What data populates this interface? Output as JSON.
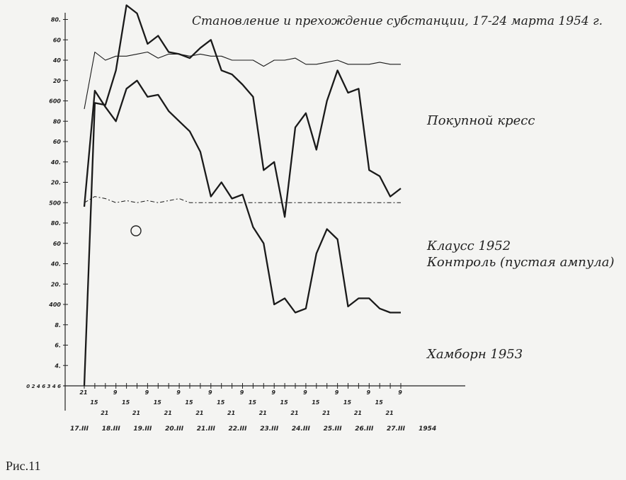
{
  "title": "Становление и прехождение субстанции, 17-24 марта 1954 г.",
  "figure_caption": "Рис.11",
  "chart_data": {
    "type": "line",
    "title": "Становление и прехождение субстанции, 17-24 марта 1954 г.",
    "xlabel": "",
    "ylabel": "",
    "x_hours": [
      "21",
      "15",
      "21",
      "9",
      "15",
      "21",
      "9",
      "15",
      "21",
      "9",
      "15",
      "21",
      "9",
      "15",
      "21",
      "9",
      "15",
      "21",
      "9",
      "15",
      "21",
      "9",
      "15",
      "21",
      "9",
      "15",
      "21",
      "9",
      "15",
      "21",
      "9"
    ],
    "x_days": [
      "17.III",
      "18.III",
      "19.III",
      "20.III",
      "21.III",
      "22.III",
      "23.III",
      "24.III",
      "25.III",
      "26.III",
      "27.III",
      "1954"
    ],
    "y_tick_labels": [
      "0 2 4 6 3 4 6",
      "4.",
      "6.",
      "8.",
      "400",
      "20.",
      "40.",
      "60",
      "80.",
      "500",
      "20.",
      "40.",
      "60",
      "80",
      "600",
      "20",
      "40",
      "60",
      "80."
    ],
    "ylim": [
      0,
      18
    ],
    "grid": false,
    "series": [
      {
        "name": "Покупной кресс",
        "style": "thin",
        "x": [
          0,
          1,
          2,
          3,
          4,
          5,
          6,
          7,
          8,
          9,
          10,
          11,
          12,
          13,
          14,
          15,
          16,
          17,
          18,
          19,
          20,
          21,
          22,
          23,
          24,
          25,
          26,
          27,
          28,
          29,
          30
        ],
        "y": [
          13.6,
          16.4,
          16.0,
          16.2,
          16.2,
          16.3,
          16.4,
          16.1,
          16.3,
          16.3,
          16.2,
          16.3,
          16.2,
          16.2,
          16.0,
          16.0,
          16.0,
          15.7,
          16.0,
          16.0,
          16.1,
          15.8,
          15.8,
          15.9,
          16.0,
          15.8,
          15.8,
          15.8,
          15.9,
          15.8,
          15.8
        ]
      },
      {
        "name": "Клаусс 1952",
        "style": "bold",
        "x": [
          0,
          1,
          2,
          3,
          4,
          5,
          6,
          7,
          8,
          9,
          10,
          11,
          12,
          13,
          14,
          15,
          16,
          17,
          18,
          19,
          20,
          21,
          22,
          23,
          24,
          25,
          26,
          27,
          28,
          29,
          30
        ],
        "y": [
          0,
          13.9,
          13.8,
          15.5,
          18.7,
          18.3,
          16.8,
          17.2,
          16.4,
          16.3,
          16.1,
          16.6,
          17.0,
          15.5,
          15.3,
          14.8,
          14.2,
          10.6,
          11.0,
          8.3,
          12.7,
          13.4,
          11.6,
          14.0,
          15.5,
          14.4,
          14.6,
          10.6,
          10.3,
          9.3,
          9.7
        ]
      },
      {
        "name": "Хамборн 1953",
        "style": "bold",
        "x": [
          0,
          1,
          2,
          3,
          4,
          5,
          6,
          7,
          8,
          9,
          10,
          11,
          12,
          13,
          14,
          15,
          16,
          17,
          18,
          19,
          20,
          21,
          22,
          23,
          24,
          25,
          26,
          27,
          28,
          29,
          30
        ],
        "y": [
          8.8,
          14.5,
          13.7,
          13.0,
          14.6,
          15.0,
          14.2,
          14.3,
          13.5,
          13.0,
          12.5,
          11.5,
          9.3,
          10.0,
          9.2,
          9.4,
          7.8,
          7.0,
          4.0,
          4.3,
          3.6,
          3.8,
          6.5,
          7.7,
          7.2,
          3.9,
          4.3,
          4.3,
          3.8,
          3.6,
          3.6
        ]
      },
      {
        "name": "Контроль (пустая ампула)",
        "style": "dashed",
        "x": [
          0,
          1,
          2,
          3,
          4,
          5,
          6,
          7,
          8,
          9,
          10,
          11,
          12,
          13,
          14,
          15,
          16,
          17,
          18,
          19,
          20,
          21,
          22,
          23,
          24,
          25,
          26,
          27,
          28,
          29,
          30
        ],
        "y": [
          9.0,
          9.3,
          9.2,
          9.0,
          9.1,
          9.0,
          9.1,
          9.0,
          9.1,
          9.2,
          9.0,
          9.0,
          9.0,
          9.0,
          9.0,
          9.0,
          9.0,
          9.0,
          9.0,
          9.0,
          9.0,
          9.0,
          9.0,
          9.0,
          9.0,
          9.0,
          9.0,
          9.0,
          9.0,
          9.0,
          9.0
        ]
      }
    ]
  }
}
